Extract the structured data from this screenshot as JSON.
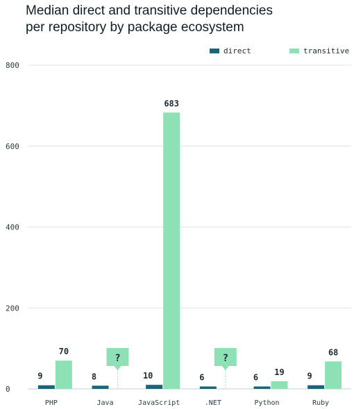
{
  "chart_data": {
    "type": "bar",
    "title_lines": [
      "Median direct and transitive dependencies",
      "per repository by package ecosystem"
    ],
    "xlabel": "",
    "ylabel": "",
    "ylim": [
      0,
      800
    ],
    "yticks": [
      0,
      200,
      400,
      600,
      800
    ],
    "grid": true,
    "legend_position": "top-right",
    "categories": [
      "PHP",
      "Java",
      "JavaScript",
      ".NET",
      "Python",
      "Ruby"
    ],
    "series": [
      {
        "name": "direct",
        "color": "#1d6479",
        "values": [
          9,
          8,
          10,
          6,
          6,
          9
        ]
      },
      {
        "name": "transitive",
        "color": "#8ee0b5",
        "values": [
          70,
          null,
          683,
          null,
          19,
          68
        ]
      }
    ],
    "unknown_marker": "?"
  }
}
